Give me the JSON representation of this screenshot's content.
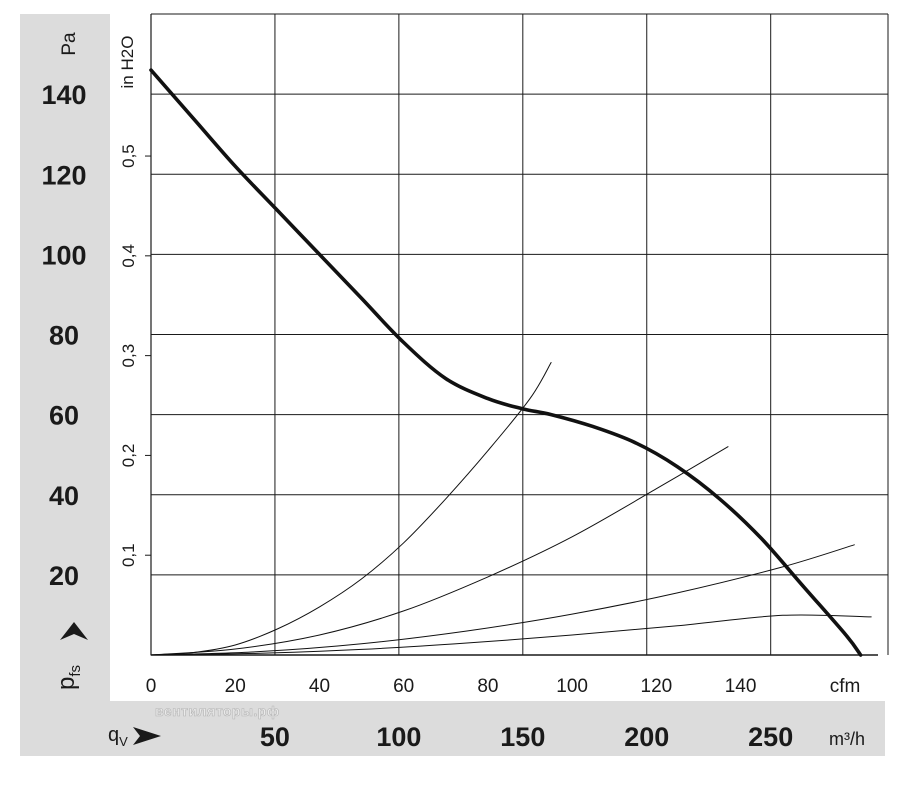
{
  "chart_data": {
    "type": "line",
    "title": "",
    "y_left_unit": "Pa",
    "y_right_unit": "in H2O",
    "y_left_label_main": "p",
    "y_left_label_sub": "fs",
    "x_top_unit": "cfm",
    "x_bottom_unit": "m³/h",
    "x_bottom_label_main": "q",
    "x_bottom_label_sub": "V",
    "watermark": "вентиляторы.рф",
    "pa_ticks": [
      "20",
      "40",
      "60",
      "80",
      "100",
      "120",
      "140"
    ],
    "inh2o_ticks": [
      "0,1",
      "0,2",
      "0,3",
      "0,4",
      "0,5"
    ],
    "cfm_ticks": [
      "0",
      "20",
      "40",
      "60",
      "80",
      "100",
      "120",
      "140"
    ],
    "m3h_ticks": [
      "50",
      "100",
      "150",
      "200",
      "250"
    ],
    "xlim_cfm": [
      0,
      175
    ],
    "ylim_pa": [
      0,
      160
    ],
    "grid": true,
    "series": [
      {
        "curve": "fan",
        "x": [
          0,
          10,
          20,
          30,
          40,
          50,
          60,
          70,
          80,
          88,
          95,
          105,
          115,
          125,
          135,
          145,
          155,
          165,
          168.5
        ],
        "y": [
          146,
          134,
          122,
          111,
          100,
          89,
          78,
          69,
          64,
          61.5,
          60,
          57,
          53,
          47,
          39,
          29,
          17,
          5,
          0
        ]
      },
      {
        "curve": "system-1",
        "x": [
          0,
          10,
          20,
          30,
          40,
          50,
          60,
          70,
          80,
          90,
          95
        ],
        "y": [
          0,
          0.6,
          2.5,
          6.5,
          12,
          19,
          28,
          39,
          51,
          64,
          73
        ]
      },
      {
        "curve": "system-2",
        "x": [
          0,
          20,
          40,
          60,
          80,
          100,
          120,
          137
        ],
        "y": [
          0,
          1.5,
          5,
          11,
          19.5,
          29.5,
          41.5,
          52
        ]
      },
      {
        "curve": "system-3",
        "x": [
          0,
          25,
          50,
          75,
          100,
          125,
          150,
          167
        ],
        "y": [
          0,
          0.8,
          2.8,
          6,
          10.2,
          15.5,
          22,
          27.5
        ]
      },
      {
        "curve": "system-4",
        "x": [
          0,
          25,
          50,
          75,
          100,
          125,
          150,
          171
        ],
        "y": [
          0,
          0.4,
          1.4,
          3,
          5,
          7.3,
          9.9,
          9.5
        ]
      }
    ]
  }
}
